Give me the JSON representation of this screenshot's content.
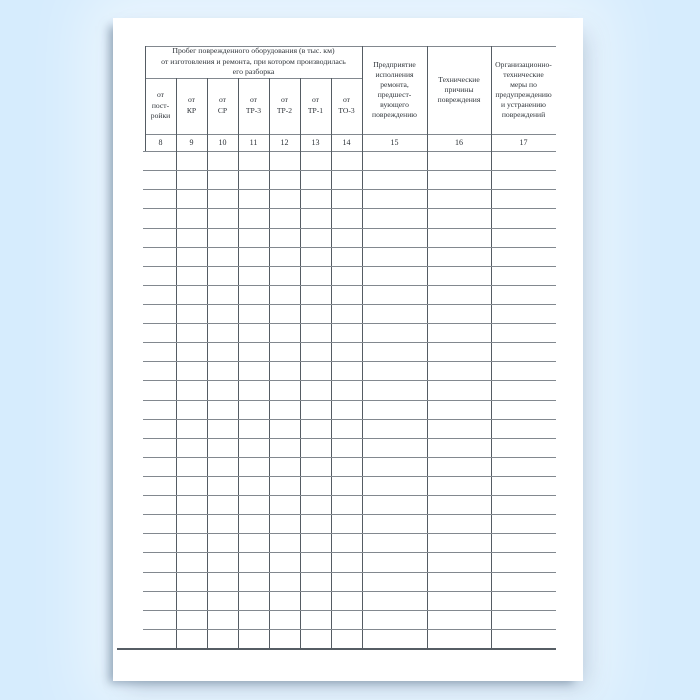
{
  "colors": {
    "background": "#d6ecfd",
    "page": "#ffffff",
    "grid_line_horizontal": "#82888f",
    "grid_line_vertical": "#555c63",
    "text": "#2d3238"
  },
  "table": {
    "group_header": "Пробег поврежденного оборудования (в тыс. км)\nот изготовления и ремонта, при котором производилась\nего разборка",
    "columns": [
      {
        "num": "8",
        "header": "от\nпост-\nройки"
      },
      {
        "num": "9",
        "header": "от\nКР"
      },
      {
        "num": "10",
        "header": "от\nСР"
      },
      {
        "num": "11",
        "header": "от\nТР-3"
      },
      {
        "num": "12",
        "header": "от\nТР-2"
      },
      {
        "num": "13",
        "header": "от\nТР-1"
      },
      {
        "num": "14",
        "header": "от\nТО-3"
      },
      {
        "num": "15",
        "header": "Предприятие\nисполнения\nремонта,\nпредшест-\nвующего\nповреждению"
      },
      {
        "num": "16",
        "header": "Технические\nпричины\nповреждения"
      },
      {
        "num": "17",
        "header": "Организационно-\nтехнические\nмеры по\nпредупреждению\nи устранению\nповреждений"
      }
    ],
    "body": {
      "row_count": 26,
      "cells": "empty"
    }
  }
}
